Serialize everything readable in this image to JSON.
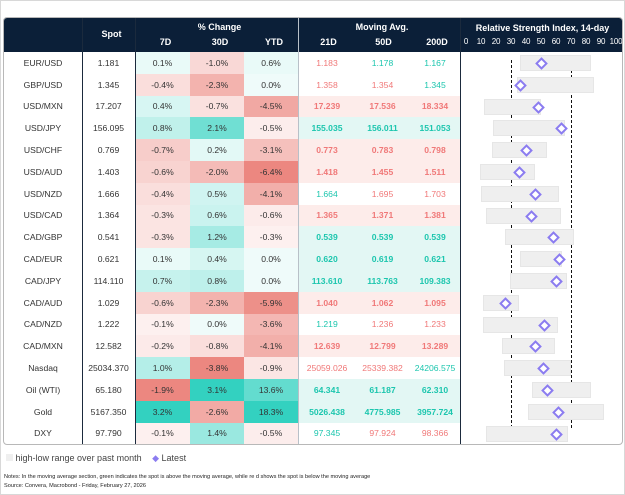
{
  "headers": {
    "spot": "Spot",
    "pct_change": "% Change",
    "d7": "7D",
    "d30": "30D",
    "ytd": "YTD",
    "moving_avg": "Moving Avg.",
    "ma21": "21D",
    "ma50": "50D",
    "ma200": "200D",
    "rsi": "Relative Strength Index, 14-day"
  },
  "colors": {
    "header_bg": "#0b1f38",
    "positive": "#33d1c0",
    "negative": "#ec8780",
    "above_ma": "#1cc6ae",
    "below_ma": "#f07878",
    "latest_marker": "#8b7cf0",
    "range_bar": "#efefef"
  },
  "chart_data": {
    "type": "table",
    "rsi_axis": {
      "ticks": [
        0,
        10,
        20,
        30,
        40,
        50,
        60,
        70,
        80,
        90,
        100
      ],
      "xlim": [
        0,
        100
      ],
      "reference_lines": [
        30,
        70
      ]
    },
    "rows": [
      {
        "name": "EUR/USD",
        "spot": "1.181",
        "d7": 0.1,
        "d30": -1.0,
        "ytd": 0.6,
        "ma21": "1.183",
        "ma50": "1.178",
        "ma200": "1.167",
        "rsi_low": 36,
        "rsi_high": 83,
        "rsi_latest": 50
      },
      {
        "name": "GBP/USD",
        "spot": "1.345",
        "d7": -0.4,
        "d30": -2.3,
        "ytd": 0.0,
        "ma21": "1.358",
        "ma50": "1.354",
        "ma200": "1.345",
        "rsi_low": 34,
        "rsi_high": 85,
        "rsi_latest": 36
      },
      {
        "name": "USD/MXN",
        "spot": "17.207",
        "d7": 0.4,
        "d30": -0.7,
        "ytd": -4.5,
        "ma21": "17.239",
        "ma50": "17.536",
        "ma200": "18.334",
        "rsi_low": 12,
        "rsi_high": 50,
        "rsi_latest": 48
      },
      {
        "name": "USD/JPY",
        "spot": "156.095",
        "d7": 0.8,
        "d30": 2.1,
        "ytd": -0.5,
        "ma21": "155.035",
        "ma50": "156.011",
        "ma200": "151.053",
        "rsi_low": 18,
        "rsi_high": 66,
        "rsi_latest": 63
      },
      {
        "name": "USD/CHF",
        "spot": "0.769",
        "d7": -0.7,
        "d30": 0.2,
        "ytd": -3.1,
        "ma21": "0.773",
        "ma50": "0.783",
        "ma200": "0.798",
        "rsi_low": 17,
        "rsi_high": 54,
        "rsi_latest": 40
      },
      {
        "name": "USD/AUD",
        "spot": "1.403",
        "d7": -0.6,
        "d30": -2.0,
        "ytd": -6.4,
        "ma21": "1.418",
        "ma50": "1.455",
        "ma200": "1.511",
        "rsi_low": 9,
        "rsi_high": 46,
        "rsi_latest": 35
      },
      {
        "name": "USD/NZD",
        "spot": "1.666",
        "d7": -0.4,
        "d30": 0.5,
        "ytd": -4.1,
        "ma21": "1.664",
        "ma50": "1.695",
        "ma200": "1.703",
        "rsi_low": 10,
        "rsi_high": 62,
        "rsi_latest": 46
      },
      {
        "name": "USD/CAD",
        "spot": "1.364",
        "d7": -0.3,
        "d30": 0.6,
        "ytd": -0.6,
        "ma21": "1.365",
        "ma50": "1.371",
        "ma200": "1.381",
        "rsi_low": 13,
        "rsi_high": 63,
        "rsi_latest": 43
      },
      {
        "name": "CAD/GBP",
        "spot": "0.541",
        "d7": -0.3,
        "d30": 1.2,
        "ytd": -0.3,
        "ma21": "0.539",
        "ma50": "0.539",
        "ma200": "0.539",
        "rsi_low": 26,
        "rsi_high": 72,
        "rsi_latest": 58
      },
      {
        "name": "CAD/EUR",
        "spot": "0.621",
        "d7": 0.1,
        "d30": 0.4,
        "ytd": 0.0,
        "ma21": "0.620",
        "ma50": "0.619",
        "ma200": "0.621",
        "rsi_low": 36,
        "rsi_high": 64,
        "rsi_latest": 62
      },
      {
        "name": "CAD/JPY",
        "spot": "114.110",
        "d7": 0.7,
        "d30": 0.8,
        "ytd": 0.0,
        "ma21": "113.610",
        "ma50": "113.763",
        "ma200": "109.383",
        "rsi_low": 29,
        "rsi_high": 67,
        "rsi_latest": 60
      },
      {
        "name": "CAD/AUD",
        "spot": "1.029",
        "d7": -0.6,
        "d30": -2.3,
        "ytd": -5.9,
        "ma21": "1.040",
        "ma50": "1.062",
        "ma200": "1.095",
        "rsi_low": 11,
        "rsi_high": 35,
        "rsi_latest": 26
      },
      {
        "name": "CAD/NZD",
        "spot": "1.222",
        "d7": -0.1,
        "d30": 0.0,
        "ytd": -3.6,
        "ma21": "1.219",
        "ma50": "1.236",
        "ma200": "1.233",
        "rsi_low": 11,
        "rsi_high": 61,
        "rsi_latest": 52
      },
      {
        "name": "CAD/MXN",
        "spot": "12.582",
        "d7": -0.2,
        "d30": -0.8,
        "ytd": -4.1,
        "ma21": "12.639",
        "ma50": "12.799",
        "ma200": "13.289",
        "rsi_low": 24,
        "rsi_high": 59,
        "rsi_latest": 46
      },
      {
        "name": "Nasdaq",
        "spot": "25034.370",
        "d7": 1.0,
        "d30": -3.8,
        "ytd": -0.9,
        "ma21": "25059.026",
        "ma50": "25339.382",
        "ma200": "24206.575",
        "rsi_low": 25,
        "rsi_high": 70,
        "rsi_latest": 51
      },
      {
        "name": "Oil (WTI)",
        "spot": "65.180",
        "d7": -1.9,
        "d30": 3.1,
        "ytd": 13.6,
        "ma21": "64.341",
        "ma50": "61.187",
        "ma200": "62.310",
        "rsi_low": 44,
        "rsi_high": 83,
        "rsi_latest": 54
      },
      {
        "name": "Gold",
        "spot": "5167.350",
        "d7": 3.2,
        "d30": -2.6,
        "ytd": 18.3,
        "ma21": "5026.438",
        "ma50": "4775.985",
        "ma200": "3957.724",
        "rsi_low": 41,
        "rsi_high": 92,
        "rsi_latest": 61
      },
      {
        "name": "DXY",
        "spot": "97.790",
        "d7": -0.1,
        "d30": 1.4,
        "ytd": -0.5,
        "ma21": "97.345",
        "ma50": "97.924",
        "ma200": "98.366",
        "rsi_low": 13,
        "rsi_high": 68,
        "rsi_latest": 60
      }
    ]
  },
  "legend": {
    "range": "high-low range over past month",
    "latest": "Latest"
  },
  "notes": "Notes: In the moving average section, green indicates the spot is above the moving average, while re  d shows the spot is below  the moving average",
  "source": "Source: Convera, Macrobond - Friday, February 27, 2026"
}
